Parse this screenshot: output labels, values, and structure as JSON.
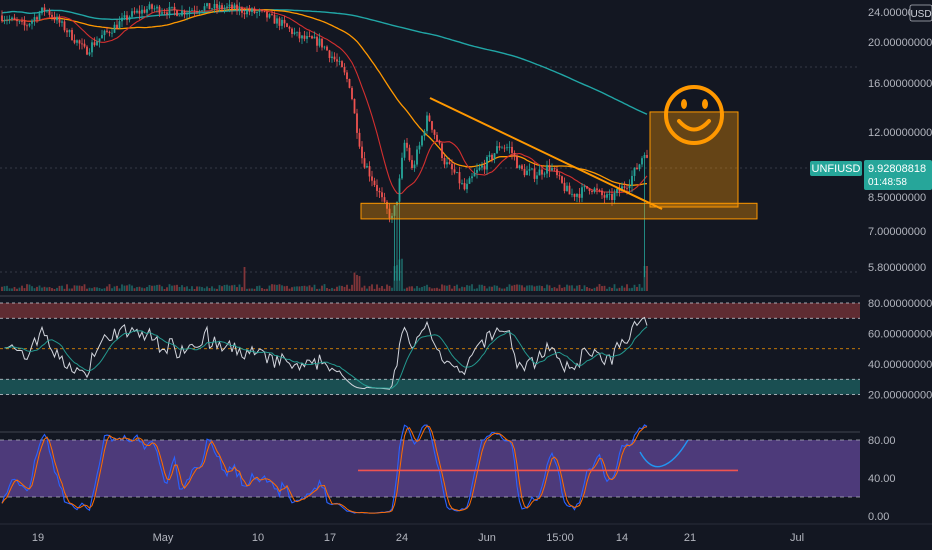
{
  "chart_data": {
    "type": "candlestick",
    "symbol": "UNFIUSD",
    "currency": "USD",
    "last_price": "9.92808818",
    "countdown": "01:48:58",
    "price_axis": {
      "ticks": [
        "24.00000000",
        "20.00000000",
        "16.00000000",
        "12.00000000",
        "8.50000000",
        "7.00000000",
        "5.80000000"
      ],
      "values": [
        24,
        20,
        16,
        12,
        8.5,
        7,
        5.8
      ]
    },
    "rsi_panel": {
      "ticks": [
        "80.00000000",
        "60.00000000",
        "40.00000000",
        "20.00000000"
      ],
      "values": [
        80,
        60,
        40,
        20
      ],
      "overbought": 70,
      "oversold": 30,
      "mid": 50
    },
    "stoch_panel": {
      "ticks": [
        "80.00",
        "40.00",
        "0.00"
      ],
      "values": [
        80,
        40,
        0
      ],
      "upper": 80,
      "lower": 20,
      "drawn_level": 48
    },
    "x_axis": {
      "labels": [
        "19",
        "May",
        "10",
        "17",
        "24",
        "Jun",
        "15:00",
        "14",
        "21",
        "Jul"
      ]
    },
    "drawings": {
      "support_zone": [
        7.5,
        8.2
      ],
      "target_box_top": 13.5,
      "emoji": "smiley-face"
    },
    "colors": {
      "up": "#26a69a",
      "down": "#ef5350",
      "drawing": "#ff9800",
      "ma_teal": "#21a6a6",
      "ma_orange": "#ff9800",
      "ma_red": "#d32f2f",
      "rsi_line": "#d1d4dc",
      "stoch_k": "#2962ff",
      "stoch_d": "#ff6d00",
      "stoch_bg": "#7e57c2",
      "badge": "#26a69a"
    }
  }
}
